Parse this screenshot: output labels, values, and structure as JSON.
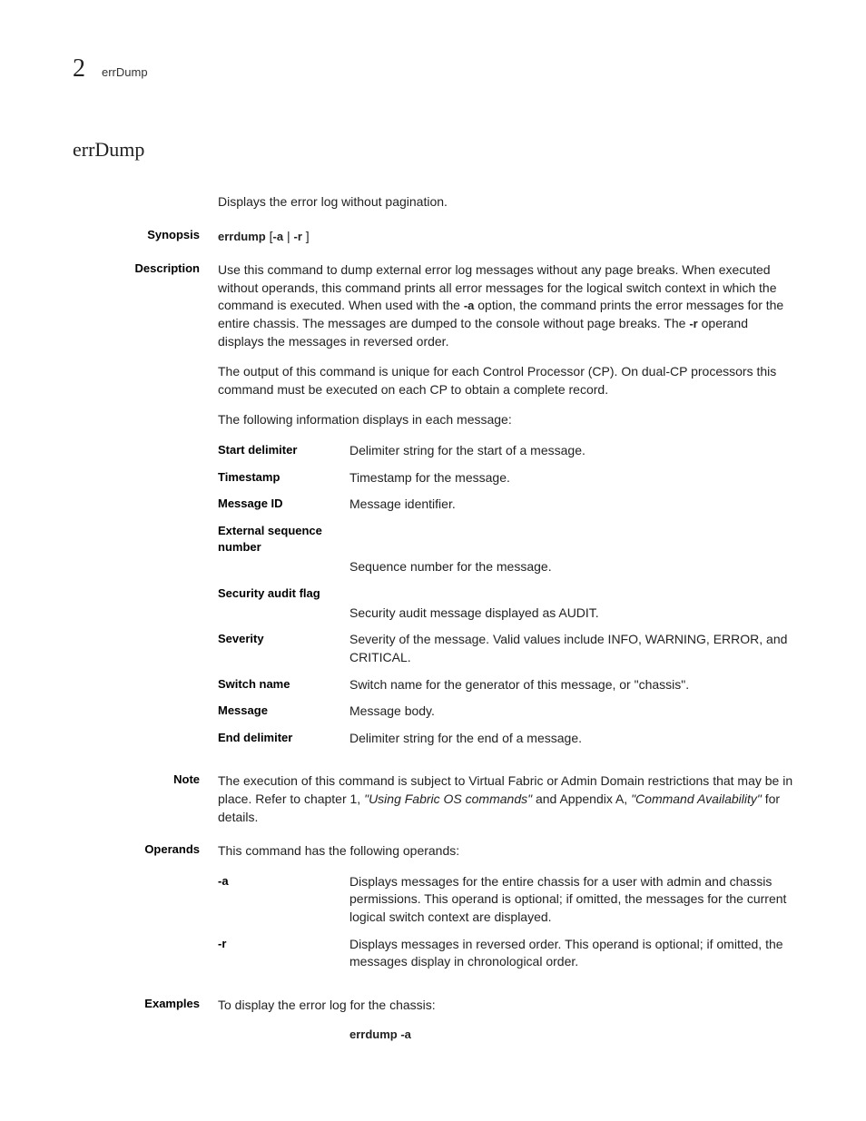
{
  "header": {
    "section_number": "2",
    "running_title": "errDump"
  },
  "title": "errDump",
  "intro": "Displays the error log without pagination.",
  "sections": {
    "synopsis": {
      "label": "Synopsis",
      "command": "errdump",
      "args_left": " [",
      "flag_a": "-a",
      "pipe": " | ",
      "flag_r": "-r",
      "args_right": " ]"
    },
    "description": {
      "label": "Description",
      "p1_pre": "Use this command to dump external error log messages without any page breaks. When executed without operands, this command prints all error messages for the logical switch context in which the command is executed. When used with the ",
      "p1_flag_a": "-a",
      "p1_mid": " option, the command prints the error messages for the entire chassis. The messages are dumped to the console without page breaks. The ",
      "p1_flag_r": "-r",
      "p1_post": " operand displays the messages in reversed order.",
      "p2": "The output of this command is unique for each Control Processor (CP). On dual-CP processors this command must be executed on each CP to obtain a complete record.",
      "p3": "The following information displays in each message:",
      "fields": [
        {
          "term": "Start delimiter",
          "desc": "Delimiter string for the start of a message.",
          "stacked": false
        },
        {
          "term": "Timestamp",
          "desc": "Timestamp for the message.",
          "stacked": false
        },
        {
          "term": "Message ID",
          "desc": "Message identifier.",
          "stacked": false
        },
        {
          "term": "External sequence number",
          "desc": "Sequence number for the message.",
          "stacked": true
        },
        {
          "term": "Security audit flag",
          "desc": "Security audit message displayed as AUDIT.",
          "stacked": true
        },
        {
          "term": "Severity",
          "desc": "Severity of the message. Valid values include INFO, WARNING, ERROR, and CRITICAL.",
          "stacked": false
        },
        {
          "term": "Switch name",
          "desc": "Switch name for the generator of this message, or \"chassis\".",
          "stacked": false
        },
        {
          "term": "Message",
          "desc": "Message body.",
          "stacked": false
        },
        {
          "term": "End delimiter",
          "desc": "Delimiter string for the end of a message.",
          "stacked": false
        }
      ]
    },
    "note": {
      "label": "Note",
      "pre": "The execution of this command is subject to Virtual Fabric or Admin Domain restrictions that may be in place. Refer to chapter 1, ",
      "ref1": "\"Using Fabric OS commands\"",
      "mid": " and Appendix A, ",
      "ref2": "\"Command Availability\"",
      "post": " for details."
    },
    "operands": {
      "label": "Operands",
      "intro": "This command has the following operands:",
      "items": [
        {
          "term": "-a",
          "desc": "Displays messages for the entire chassis for a user with admin and chassis permissions. This operand is optional; if omitted, the messages for the current logical switch context are displayed."
        },
        {
          "term": "-r",
          "desc": "Displays messages in reversed order. This operand is optional; if omitted, the messages display in chronological order."
        }
      ]
    },
    "examples": {
      "label": "Examples",
      "intro": "To display the error log for the chassis:",
      "code": "errdump -a"
    }
  }
}
